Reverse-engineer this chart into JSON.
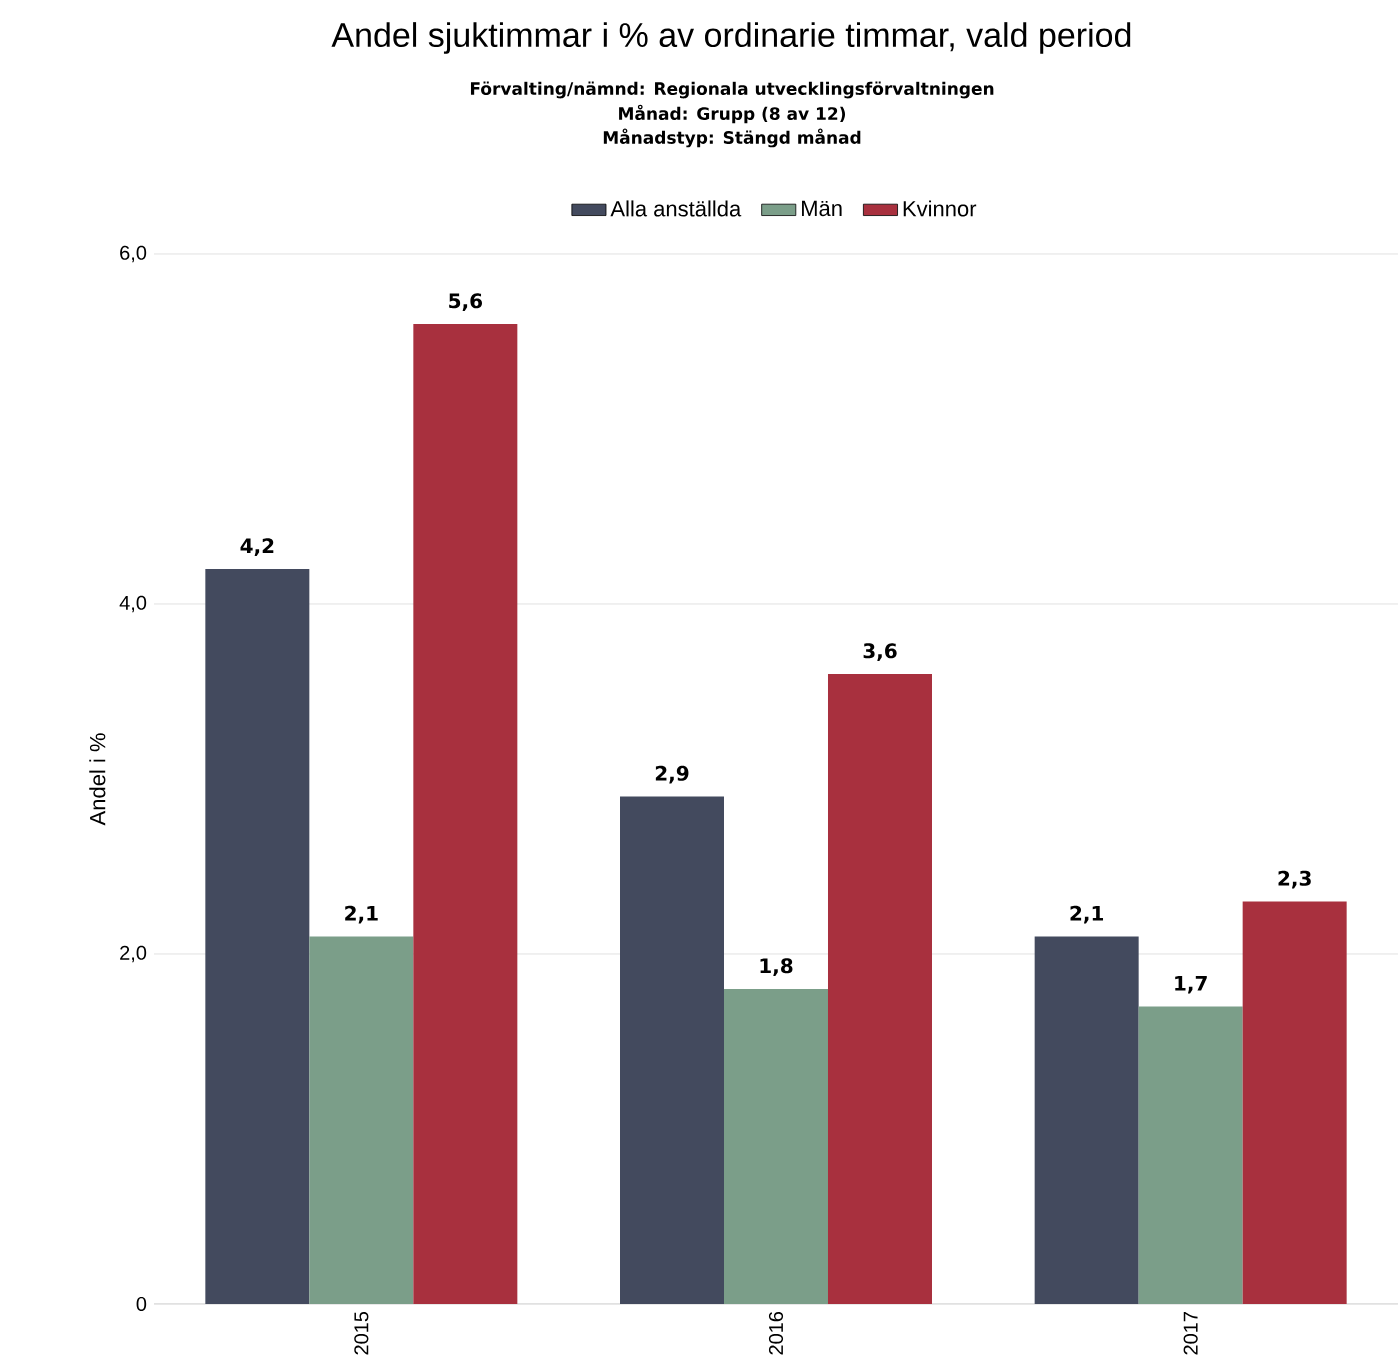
{
  "chart_data": {
    "type": "bar",
    "title": "Andel sjuktimmar i % av ordinarie timmar, vald period",
    "subtitle": "Förvalting/nämnd: Regionala utvecklingsförvaltningen",
    "annotations": [
      "Månad: Grupp (8 av 12)",
      "Månadstyp: Stängd månad"
    ],
    "ylabel": "Andel i %",
    "categories": [
      "2015",
      "2016",
      "2017"
    ],
    "series": [
      {
        "name": "Alla anställda",
        "color": "#434a5e",
        "values": [
          4.2,
          2.9,
          2.1
        ],
        "value_labels": [
          "4,2",
          "2,9",
          "2,1"
        ]
      },
      {
        "name": "Män",
        "color": "#7b9e89",
        "values": [
          2.1,
          1.8,
          1.7
        ],
        "value_labels": [
          "2,1",
          "1,8",
          "1,7"
        ]
      },
      {
        "name": "Kvinnor",
        "color": "#a8303e",
        "values": [
          5.6,
          3.6,
          2.3
        ],
        "value_labels": [
          "5,6",
          "3,6",
          "2,3"
        ]
      }
    ],
    "ylim": [
      0,
      6
    ],
    "yticks": [
      0,
      {
        "value": 2,
        "label": "2,0"
      },
      {
        "value": 4,
        "label": "4,0"
      },
      {
        "value": 6,
        "label": "6,0"
      }
    ],
    "grid": "y",
    "legend": "top"
  }
}
